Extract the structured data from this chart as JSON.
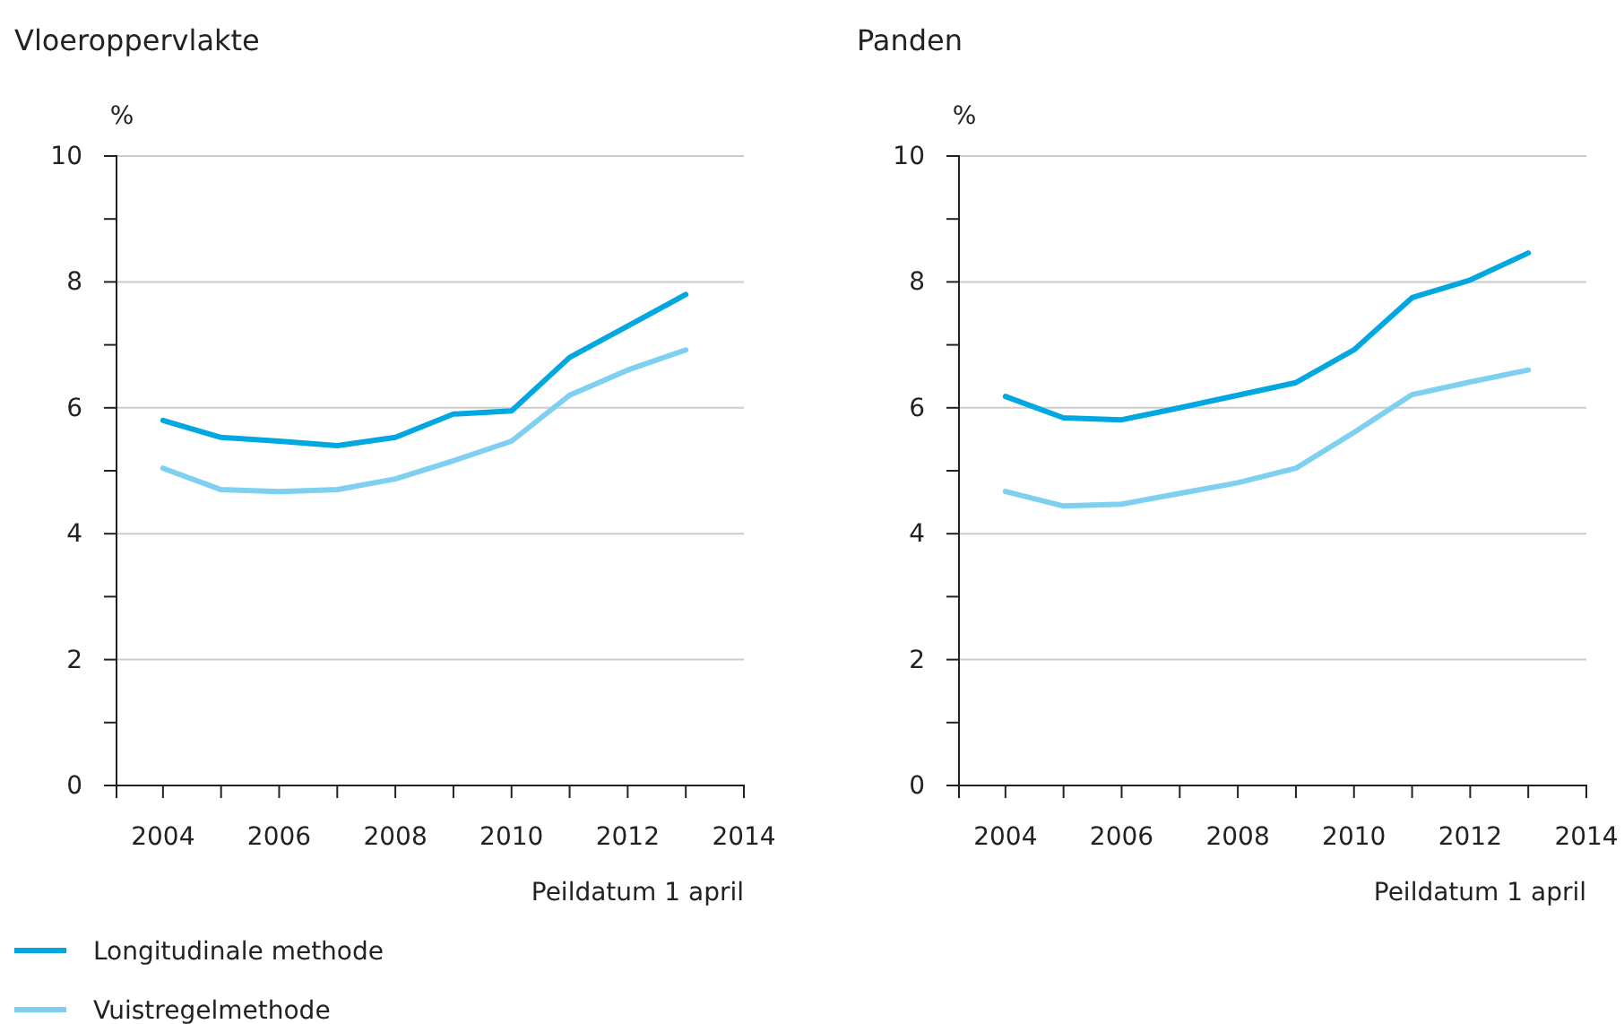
{
  "chart_data": [
    {
      "type": "line",
      "title": "Vloeroppervlakte",
      "ylabel": "%",
      "xlabel": "Peildatum 1 april",
      "x": [
        2004,
        2005,
        2006,
        2007,
        2008,
        2009,
        2010,
        2011,
        2012,
        2013
      ],
      "series": [
        {
          "name": "Longitudinale methode",
          "color": "#00a7e1",
          "values": [
            5.8,
            5.53,
            5.47,
            5.4,
            5.53,
            5.9,
            5.95,
            6.8,
            7.3,
            7.8
          ]
        },
        {
          "name": "Vuistregelmethode",
          "color": "#7fd0f0",
          "values": [
            5.04,
            4.7,
            4.67,
            4.7,
            4.87,
            5.16,
            5.47,
            6.2,
            6.6,
            6.92
          ]
        }
      ],
      "xlim": [
        2003.2,
        2014
      ],
      "xticks": [
        2004,
        {
          "value": 2005,
          "label": null
        },
        2006,
        {
          "value": 2007,
          "label": null
        },
        2008,
        {
          "value": 2009,
          "label": null
        },
        2010,
        {
          "value": 2011,
          "label": null
        },
        2012,
        {
          "value": 2013,
          "label": null
        },
        2014
      ],
      "ylim": [
        0,
        10
      ],
      "yticks": [
        0,
        {
          "value": 1,
          "label": null
        },
        2,
        {
          "value": 3,
          "label": null
        },
        4,
        {
          "value": 5,
          "label": null
        },
        6,
        {
          "value": 7,
          "label": null
        },
        8,
        {
          "value": 9,
          "label": null
        },
        10
      ],
      "grid": "y",
      "legend": "bottom",
      "line_style": "solid",
      "marker": "none"
    },
    {
      "type": "line",
      "title": "Panden",
      "ylabel": "%",
      "xlabel": "Peildatum 1 april",
      "x": [
        2004,
        2005,
        2006,
        2007,
        2008,
        2009,
        2010,
        2011,
        2012,
        2013
      ],
      "series": [
        {
          "color": "#00a7e1",
          "values": [
            6.18,
            5.84,
            5.81,
            6.0,
            6.2,
            6.4,
            6.92,
            7.75,
            8.03,
            8.46
          ]
        },
        {
          "color": "#7fd0f0",
          "values": [
            4.67,
            4.44,
            4.47,
            4.64,
            4.81,
            5.04,
            5.61,
            6.21,
            6.41,
            6.6
          ]
        }
      ],
      "xlim": [
        2003.2,
        2014
      ],
      "xticks": [
        2004,
        {
          "value": 2005,
          "label": null
        },
        2006,
        {
          "value": 2007,
          "label": null
        },
        2008,
        {
          "value": 2009,
          "label": null
        },
        2010,
        {
          "value": 2011,
          "label": null
        },
        2012,
        {
          "value": 2013,
          "label": null
        },
        2014
      ],
      "ylim": [
        0,
        10
      ],
      "yticks": [
        0,
        {
          "value": 1,
          "label": null
        },
        2,
        {
          "value": 3,
          "label": null
        },
        4,
        {
          "value": 5,
          "label": null
        },
        6,
        {
          "value": 7,
          "label": null
        },
        8,
        {
          "value": 9,
          "label": null
        },
        10
      ],
      "grid": "y",
      "line_style": "solid",
      "marker": "none"
    }
  ]
}
